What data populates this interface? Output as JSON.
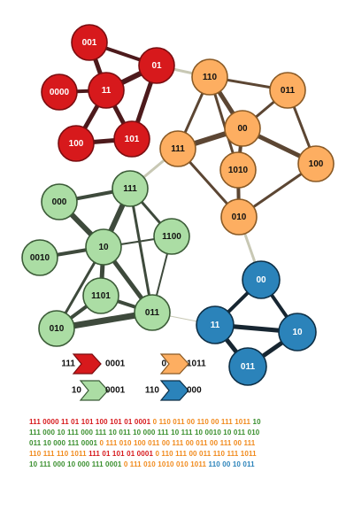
{
  "colors": {
    "red": {
      "fill": "#d7191c",
      "stroke": "#7a0d10",
      "edge": "#4d1a1c"
    },
    "orange": {
      "fill": "#fdae61",
      "stroke": "#8a5a25",
      "edge": "#5c4633"
    },
    "green": {
      "fill": "#abdda4",
      "stroke": "#3b5b37",
      "edge": "#3e4a3c"
    },
    "blue": {
      "fill": "#2b83ba",
      "stroke": "#0d2f46",
      "edge": "#172631"
    },
    "bridge": "#c8c8b4"
  },
  "nodes": [
    {
      "id": "r001",
      "label": "001",
      "group": "red"
    },
    {
      "id": "r01",
      "label": "01",
      "group": "red"
    },
    {
      "id": "r0000",
      "label": "0000",
      "group": "red"
    },
    {
      "id": "r11",
      "label": "11",
      "group": "red"
    },
    {
      "id": "r100",
      "label": "100",
      "group": "red"
    },
    {
      "id": "r101",
      "label": "101",
      "group": "red"
    },
    {
      "id": "o110",
      "label": "110",
      "group": "orange"
    },
    {
      "id": "o011",
      "label": "011",
      "group": "orange"
    },
    {
      "id": "o00",
      "label": "00",
      "group": "orange"
    },
    {
      "id": "o111",
      "label": "111",
      "group": "orange"
    },
    {
      "id": "o1010",
      "label": "1010",
      "group": "orange"
    },
    {
      "id": "o100",
      "label": "100",
      "group": "orange"
    },
    {
      "id": "o010",
      "label": "010",
      "group": "orange"
    },
    {
      "id": "g000",
      "label": "000",
      "group": "green"
    },
    {
      "id": "g111",
      "label": "111",
      "group": "green"
    },
    {
      "id": "g0010",
      "label": "0010",
      "group": "green"
    },
    {
      "id": "g10",
      "label": "10",
      "group": "green"
    },
    {
      "id": "g1100",
      "label": "1100",
      "group": "green"
    },
    {
      "id": "g1101",
      "label": "1101",
      "group": "green"
    },
    {
      "id": "g010",
      "label": "010",
      "group": "green"
    },
    {
      "id": "g011",
      "label": "011",
      "group": "green"
    },
    {
      "id": "b00",
      "label": "00",
      "group": "blue"
    },
    {
      "id": "b11",
      "label": "11",
      "group": "blue"
    },
    {
      "id": "b10",
      "label": "10",
      "group": "blue"
    },
    {
      "id": "b011",
      "label": "011",
      "group": "blue"
    }
  ],
  "edges": [
    {
      "from": "r001",
      "to": "r01",
      "group": "red",
      "weight": 4
    },
    {
      "from": "r001",
      "to": "r11",
      "group": "red",
      "weight": 5
    },
    {
      "from": "r01",
      "to": "r11",
      "group": "red",
      "weight": 6
    },
    {
      "from": "r01",
      "to": "r101",
      "group": "red",
      "weight": 5
    },
    {
      "from": "r0000",
      "to": "r11",
      "group": "red",
      "weight": 4
    },
    {
      "from": "r11",
      "to": "r100",
      "group": "red",
      "weight": 5
    },
    {
      "from": "r11",
      "to": "r101",
      "group": "red",
      "weight": 5
    },
    {
      "from": "r100",
      "to": "r101",
      "group": "red",
      "weight": 5
    },
    {
      "from": "o110",
      "to": "o011",
      "group": "orange",
      "weight": 3
    },
    {
      "from": "o110",
      "to": "o00",
      "group": "orange",
      "weight": 5
    },
    {
      "from": "o110",
      "to": "o111",
      "group": "orange",
      "weight": 3
    },
    {
      "from": "o110",
      "to": "o1010",
      "group": "orange",
      "weight": 3
    },
    {
      "from": "o011",
      "to": "o00",
      "group": "orange",
      "weight": 3
    },
    {
      "from": "o011",
      "to": "o100",
      "group": "orange",
      "weight": 3
    },
    {
      "from": "o00",
      "to": "o111",
      "group": "orange",
      "weight": 6
    },
    {
      "from": "o00",
      "to": "o100",
      "group": "orange",
      "weight": 5
    },
    {
      "from": "o00",
      "to": "o1010",
      "group": "orange",
      "weight": 4
    },
    {
      "from": "o111",
      "to": "o010",
      "group": "orange",
      "weight": 3
    },
    {
      "from": "o1010",
      "to": "o010",
      "group": "orange",
      "weight": 4
    },
    {
      "from": "o100",
      "to": "o010",
      "group": "orange",
      "weight": 3
    },
    {
      "from": "g000",
      "to": "g111",
      "group": "green",
      "weight": 4
    },
    {
      "from": "g000",
      "to": "g10",
      "group": "green",
      "weight": 6
    },
    {
      "from": "g111",
      "to": "g10",
      "group": "green",
      "weight": 6
    },
    {
      "from": "g111",
      "to": "g1100",
      "group": "green",
      "weight": 3
    },
    {
      "from": "g111",
      "to": "g011",
      "group": "green",
      "weight": 3
    },
    {
      "from": "g0010",
      "to": "g10",
      "group": "green",
      "weight": 4
    },
    {
      "from": "g10",
      "to": "g1100",
      "group": "green",
      "weight": 2
    },
    {
      "from": "g10",
      "to": "g1101",
      "group": "green",
      "weight": 5
    },
    {
      "from": "g10",
      "to": "g010",
      "group": "green",
      "weight": 3
    },
    {
      "from": "g10",
      "to": "g011",
      "group": "green",
      "weight": 5
    },
    {
      "from": "g1100",
      "to": "g011",
      "group": "green",
      "weight": 2
    },
    {
      "from": "g1101",
      "to": "g010",
      "group": "green",
      "weight": 4
    },
    {
      "from": "g1101",
      "to": "g011",
      "group": "green",
      "weight": 4
    },
    {
      "from": "g010",
      "to": "g011",
      "group": "green",
      "weight": 7
    },
    {
      "from": "b00",
      "to": "b11",
      "group": "blue",
      "weight": 4
    },
    {
      "from": "b00",
      "to": "b10",
      "group": "blue",
      "weight": 4
    },
    {
      "from": "b11",
      "to": "b10",
      "group": "blue",
      "weight": 5
    },
    {
      "from": "b11",
      "to": "b011",
      "group": "blue",
      "weight": 5
    },
    {
      "from": "b10",
      "to": "b011",
      "group": "blue",
      "weight": 5
    },
    {
      "from": "r01",
      "to": "o110",
      "group": "bridge",
      "weight": 3
    },
    {
      "from": "o111",
      "to": "g111",
      "group": "bridge",
      "weight": 3
    },
    {
      "from": "o010",
      "to": "b00",
      "group": "bridge",
      "weight": 3
    },
    {
      "from": "g011",
      "to": "b11",
      "group": "bridge",
      "weight": 1
    }
  ],
  "legend": [
    {
      "group": "red",
      "from": "111",
      "to": "0001"
    },
    {
      "group": "orange",
      "from": "0",
      "to": "1011"
    },
    {
      "group": "green",
      "from": "10",
      "to": "0001"
    },
    {
      "group": "blue",
      "from": "110",
      "to": "000"
    }
  ],
  "code_colors": {
    "red": "#d7191c",
    "orange": "#f18a1c",
    "green": "#3a8f2e",
    "blue": "#2b83ba"
  },
  "code_lines": [
    [
      {
        "group": "red",
        "text": "111 0000 11 01 101 100 101 01 0001 "
      },
      {
        "group": "orange",
        "text": "0 110 011 00 110 00 111 1011 "
      },
      {
        "group": "green",
        "text": "10"
      }
    ],
    [
      {
        "group": "green",
        "text": "111 000 10 111 000 111 10 011 10 000 111 10 111 10 0010 10 011 010"
      }
    ],
    [
      {
        "group": "green",
        "text": "011 10 000 111 0001 "
      },
      {
        "group": "orange",
        "text": "0 111 010 100 011 00 111 00 011 00 111 00 111"
      }
    ],
    [
      {
        "group": "orange",
        "text": "110 111 110 1011 "
      },
      {
        "group": "red",
        "text": "111 01 101 01 0001 "
      },
      {
        "group": "orange",
        "text": "0 110 111 00 011 110 111 1011"
      }
    ],
    [
      {
        "group": "green",
        "text": "10 111 000 10 000 111 0001 "
      },
      {
        "group": "orange",
        "text": "0 111 010 1010 010 1011 "
      },
      {
        "group": "blue",
        "text": "110 00 10 011"
      }
    ]
  ]
}
